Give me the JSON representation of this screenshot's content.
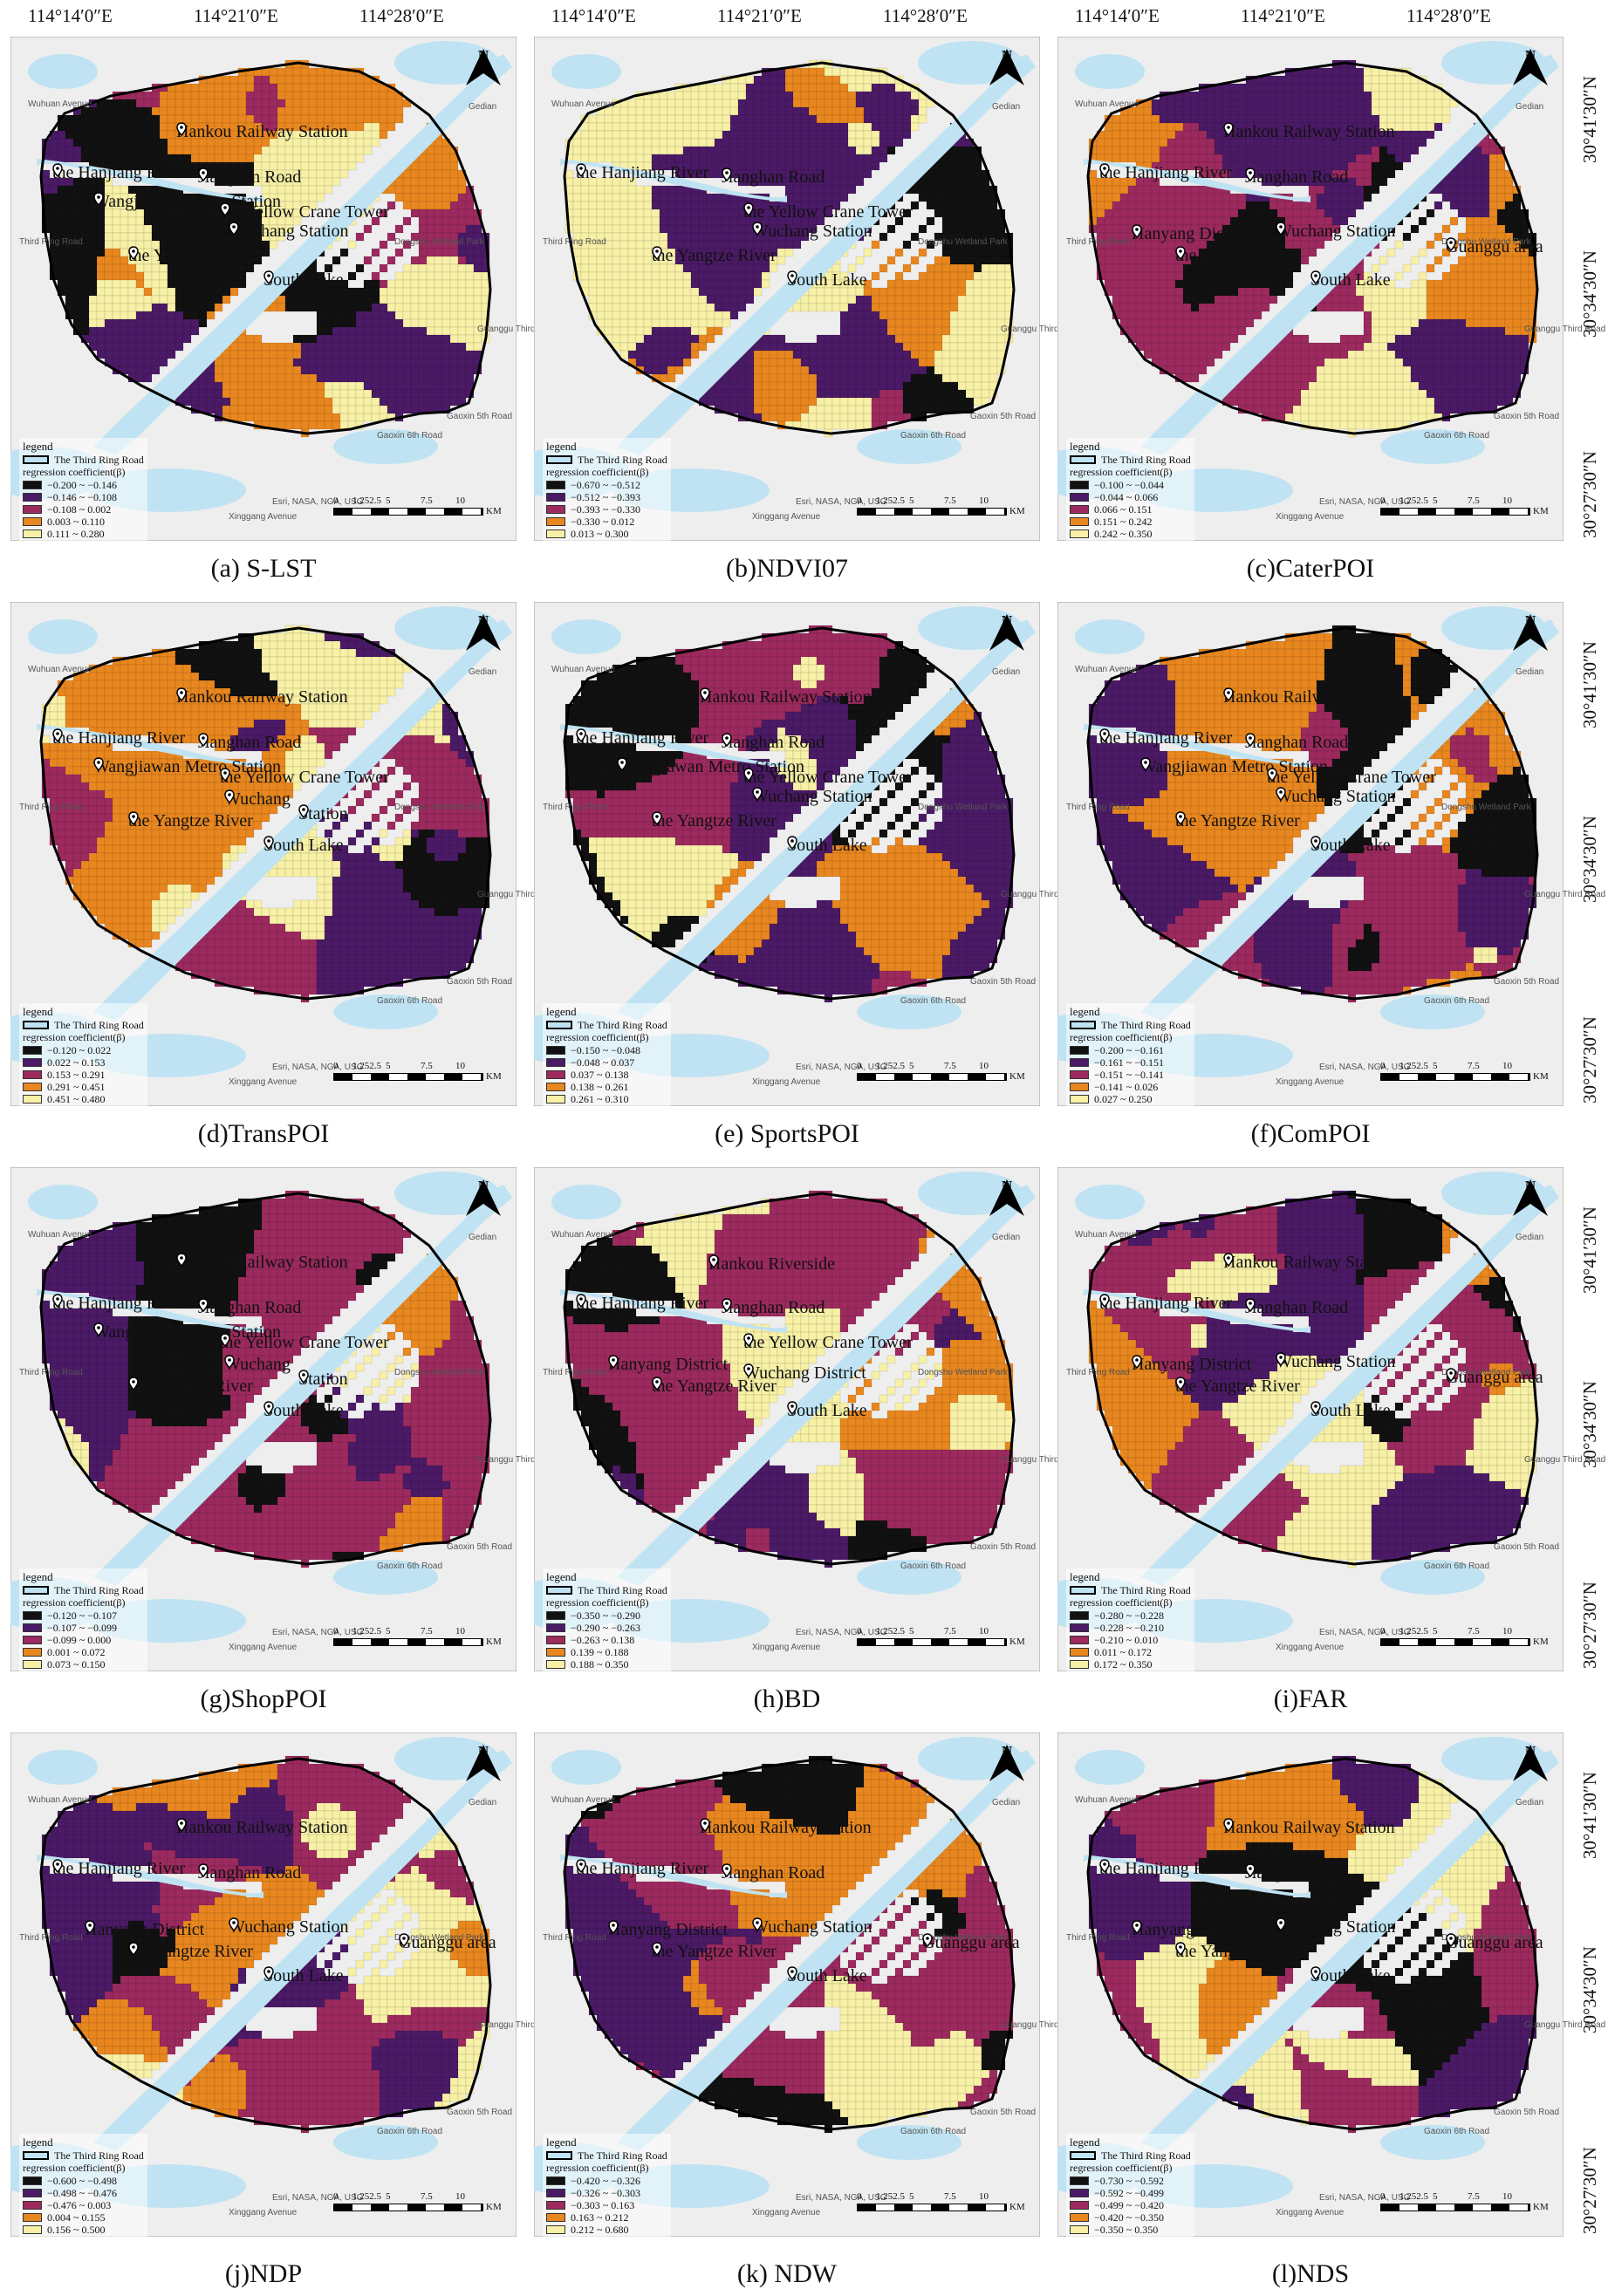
{
  "top_lon_labels": [
    [
      "114°14′0″E",
      "114°21′0″E",
      "114°28′0″E"
    ],
    [
      "114°14′0″E",
      "114°21′0″E",
      "114°28′0″E"
    ],
    [
      "114°14′0″E",
      "114°21′0″E",
      "114°28′0″E"
    ]
  ],
  "right_lat_labels": [
    [
      "30°41′30″N",
      "30°34′30″N",
      "30°27′30″N"
    ],
    [
      "30°41′30″N",
      "30°34′30″N",
      "30°27′30″N"
    ],
    [
      "30°41′30″N",
      "30°34′30″N",
      "30°27′30″N"
    ],
    [
      "30°41′30″N",
      "30°34′30″N",
      "30°27′30″N"
    ]
  ],
  "legend": {
    "heading": "legend",
    "ring_road": "The Third Ring Road",
    "coef_label": "regression coefficient(β)"
  },
  "north_label": "N",
  "scale_bar": {
    "ticks": [
      "0",
      "1.252.5",
      "5",
      "7.5",
      "10"
    ],
    "unit": "KM"
  },
  "attribution": "Esri, NASA, NGA, USG",
  "road_labels": {
    "wuhuan": "Wuhuan Avenue",
    "gedian": "Gedian",
    "ring": "Third Ring Road",
    "wetland": "Dongshu Wetland Park",
    "guanggu": "Guanggu Third Road",
    "gaoxin5": "Gaoxin 5th Road",
    "gaoxin6": "Gaoxin 6th Road",
    "xinggang": "Xinggang Avenue"
  },
  "colors": {
    "class1": "#111111",
    "class2": "#4b1a66",
    "class3": "#9c2a5e",
    "class4": "#e8871f",
    "class5": "#f7f0a6",
    "water": "#bfe3f2",
    "basemap": "#eeeeee"
  },
  "panels": [
    {
      "id": "a",
      "caption": "(a) S-LST",
      "classes": [
        "−0.200 ~ −0.146",
        "−0.146 ~ −0.108",
        "−0.108 ~ 0.002",
        "0.003 ~ 0.110",
        "0.111 ~ 0.280"
      ],
      "places": [
        "the Hanjiang River",
        "Hankou Railway Station",
        "Jianghan Road",
        "Wangjiawan Metro Station",
        "the Yellow Crane Tower",
        "Wuchang Station",
        "the Yangtze River",
        "South Lake"
      ]
    },
    {
      "id": "b",
      "caption": "(b)NDVI07",
      "classes": [
        "−0.670 ~ −0.512",
        "−0.512 ~ −0.393",
        "−0.393 ~ −0.330",
        "−0.330 ~ 0.012",
        "0.013 ~ 0.300"
      ],
      "places": [
        "the Hanjiang River",
        "Jianghan Road",
        "the Yellow Crane Tower",
        "Wuchang Station",
        "the Yangtze River",
        "South Lake"
      ]
    },
    {
      "id": "c",
      "caption": "(c)CaterPOI",
      "classes": [
        "−0.100 ~ −0.044",
        "−0.044 ~ 0.066",
        "0.066 ~ 0.151",
        "0.151 ~ 0.242",
        "0.242 ~ 0.350"
      ],
      "places": [
        "the Hanjiang River",
        "Hankou Railway Station",
        "Jianghan Road",
        "Hanyang District",
        "Wuchang Station",
        "the Yangtze River",
        "Guanggu area",
        "South Lake"
      ]
    },
    {
      "id": "d",
      "caption": "(d)TransPOI",
      "classes": [
        "−0.120 ~ 0.022",
        "0.022 ~ 0.153",
        "0.153 ~ 0.291",
        "0.291 ~ 0.451",
        "0.451 ~ 0.480"
      ],
      "places": [
        "Hankou Railway Station",
        "the Hanjiang River",
        "Jianghan Road",
        "Wangjiawan Metro Station",
        "the Yellow Crane Tower",
        "Wuchang",
        "Station",
        "the Yangtze River",
        "South Lake"
      ]
    },
    {
      "id": "e",
      "caption": "(e)  SportsPOI",
      "classes": [
        "−0.150 ~ −0.048",
        "−0.048 ~ 0.037",
        "0.037 ~ 0.138",
        "0.138 ~ 0.261",
        "0.261 ~ 0.310"
      ],
      "places": [
        "Hankou Railway Station",
        "the Hanjiang River",
        "Jianghan Road",
        "Wangjiawan Metro Station",
        "the Yellow Crane Tower",
        "Wuchang Station",
        "the Yangtze River",
        "South Lake"
      ]
    },
    {
      "id": "f",
      "caption": "(f)ComPOI",
      "classes": [
        "−0.200 ~ −0.161",
        "−0.161 ~ −0.151",
        "−0.151 ~ −0.141",
        "−0.141 ~ 0.026",
        "0.027 ~ 0.250"
      ],
      "places": [
        "Hankou Railway Station",
        "the Hanjiang River",
        "Jianghan Road",
        "Wangjiawan Metro Station",
        "the Yellow Crane Tower",
        "Wuchang Station",
        "the Yangtze River",
        "South Lake"
      ]
    },
    {
      "id": "g",
      "caption": "(g)ShopPOI",
      "classes": [
        "−0.120 ~ −0.107",
        "−0.107 ~ −0.099",
        "−0.099 ~ 0.000",
        "0.001 ~ 0.072",
        "0.073 ~ 0.150"
      ],
      "places": [
        "Hankou Railway Station",
        "the Hanjiang River",
        "Jianghan Road",
        "Wangjiawan Metro Station",
        "the Yellow Crane Tower",
        "Wuchang",
        "Station",
        "the Yangtze River",
        "South Lake"
      ]
    },
    {
      "id": "h",
      "caption": "(h)BD",
      "classes": [
        "−0.350 ~ −0.290",
        "−0.290 ~ −0.263",
        "−0.263 ~ 0.138",
        "0.139 ~ 0.188",
        "0.188 ~ 0.350"
      ],
      "places": [
        "the Hanjiang River",
        "Hankou Riverside",
        "Jianghan Road",
        "Hanyang District",
        "the Yellow Crane Tower",
        "Wuchang District",
        "the Yangtze River",
        "South Lake"
      ]
    },
    {
      "id": "i",
      "caption": "(i)FAR",
      "classes": [
        "−0.280 ~ −0.228",
        "−0.228 ~ −0.210",
        "−0.210 ~ 0.010",
        "0.011 ~ 0.172",
        "0.172 ~ 0.350"
      ],
      "places": [
        "Hankou Railway Station",
        "the Hanjiang River",
        "Jianghan Road",
        "Hanyang District",
        "Wuchang Station",
        "the Yangtze River",
        "Guanggu area",
        "South Lake"
      ]
    },
    {
      "id": "j",
      "caption": "(j)NDP",
      "classes": [
        "−0.600 ~ −0.498",
        "−0.498 ~ −0.476",
        "−0.476 ~ 0.003",
        "0.004 ~ 0.155",
        "0.156 ~ 0.500"
      ],
      "places": [
        "the Hanjiang River",
        "Hankou Railway Station",
        "Jianghan Road",
        "Hanyang District",
        "Wuchang Station",
        "the Yangtze River",
        "Guanggu area",
        "South Lake"
      ]
    },
    {
      "id": "k",
      "caption": "(k)  NDW",
      "classes": [
        "−0.420 ~ −0.326",
        "−0.326 ~ −0.303",
        "−0.303 ~ 0.163",
        "0.163 ~ 0.212",
        "0.212 ~ 0.680"
      ],
      "places": [
        "the Hanjiang River",
        "Hankou Railway Station",
        "Jianghan Road",
        "Hanyang District",
        "Wuchang Station",
        "the Yangtze River",
        "Guanggu area",
        "South Lake"
      ]
    },
    {
      "id": "l",
      "caption": "(l)NDS",
      "classes": [
        "−0.730 ~ −0.592",
        "−0.592 ~ −0.499",
        "−0.499 ~ −0.420",
        "−0.420 ~ −0.350",
        "−0.350 ~ 0.350"
      ],
      "places": [
        "the Hanjiang River",
        "Hankou Railway Station",
        "Jianghan Road",
        "Hanyang District",
        "Wuchang Station",
        "the Yangtze River",
        "Guanggu area",
        "South Lake"
      ]
    }
  ]
}
